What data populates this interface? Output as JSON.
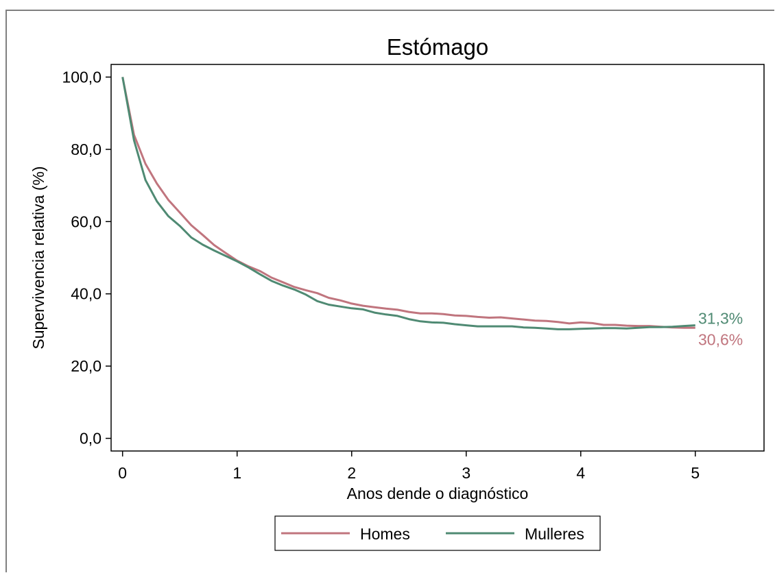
{
  "chart_data": {
    "type": "line",
    "title": "Estómago",
    "xlabel": "Anos dende o diagnóstico",
    "ylabel": "Supervivencia relativa (%)",
    "xlim": [
      -0.1,
      5.6
    ],
    "ylim": [
      -3.5,
      103.5
    ],
    "xticks": [
      0,
      1,
      2,
      3,
      4,
      5
    ],
    "xtick_labels": [
      "0",
      "1",
      "2",
      "3",
      "4",
      "5"
    ],
    "yticks": [
      0,
      20,
      40,
      60,
      80,
      100
    ],
    "ytick_labels": [
      "0,0",
      "20,0",
      "40,0",
      "60,0",
      "80,0",
      "100,0"
    ],
    "grid": false,
    "legend_position": "bottom",
    "series": [
      {
        "name": "Homes",
        "color": "#c0757e",
        "end_label": "30,6%",
        "x": [
          0,
          0.1,
          0.2,
          0.3,
          0.4,
          0.5,
          0.6,
          0.7,
          0.8,
          0.9,
          1.0,
          1.1,
          1.2,
          1.3,
          1.4,
          1.5,
          1.6,
          1.7,
          1.8,
          1.9,
          2.0,
          2.1,
          2.2,
          2.3,
          2.4,
          2.5,
          2.6,
          2.7,
          2.8,
          2.9,
          3.0,
          3.1,
          3.2,
          3.3,
          3.4,
          3.5,
          3.6,
          3.7,
          3.8,
          3.9,
          4.0,
          4.1,
          4.2,
          4.3,
          4.4,
          4.5,
          4.6,
          4.7,
          4.8,
          4.9,
          5.0
        ],
        "y": [
          100,
          84,
          76,
          70.5,
          66,
          62.5,
          59,
          56.3,
          53.5,
          51.3,
          49.2,
          47.6,
          46.3,
          44.5,
          43.2,
          41.9,
          41.0,
          40.2,
          38.9,
          38.2,
          37.3,
          36.7,
          36.3,
          35.9,
          35.6,
          35.0,
          34.6,
          34.6,
          34.4,
          34.0,
          33.9,
          33.6,
          33.4,
          33.5,
          33.2,
          32.9,
          32.6,
          32.5,
          32.2,
          31.8,
          32.1,
          31.9,
          31.4,
          31.4,
          31.2,
          31.1,
          31.1,
          30.9,
          30.7,
          30.6,
          30.6
        ]
      },
      {
        "name": "Mulleres",
        "color": "#4f8a73",
        "end_label": "31,3%",
        "x": [
          0,
          0.1,
          0.2,
          0.3,
          0.4,
          0.5,
          0.6,
          0.7,
          0.8,
          0.9,
          1.0,
          1.1,
          1.2,
          1.3,
          1.4,
          1.5,
          1.6,
          1.7,
          1.8,
          1.9,
          2.0,
          2.1,
          2.2,
          2.3,
          2.4,
          2.5,
          2.6,
          2.7,
          2.8,
          2.9,
          3.0,
          3.1,
          3.2,
          3.3,
          3.4,
          3.5,
          3.6,
          3.7,
          3.8,
          3.9,
          4.0,
          4.1,
          4.2,
          4.3,
          4.4,
          4.5,
          4.6,
          4.7,
          4.8,
          4.9,
          5.0
        ],
        "y": [
          100,
          82.5,
          71.5,
          65.6,
          61.5,
          58.8,
          55.6,
          53.6,
          52.0,
          50.5,
          49.0,
          47.3,
          45.4,
          43.6,
          42.3,
          41.2,
          39.8,
          38.0,
          37.0,
          36.5,
          36.0,
          35.7,
          34.8,
          34.3,
          33.9,
          33.0,
          32.4,
          32.1,
          32.0,
          31.6,
          31.3,
          31.0,
          31.0,
          31.0,
          31.0,
          30.7,
          30.6,
          30.4,
          30.2,
          30.2,
          30.3,
          30.4,
          30.5,
          30.5,
          30.4,
          30.6,
          30.8,
          30.8,
          30.9,
          31.1,
          31.3
        ]
      }
    ]
  }
}
